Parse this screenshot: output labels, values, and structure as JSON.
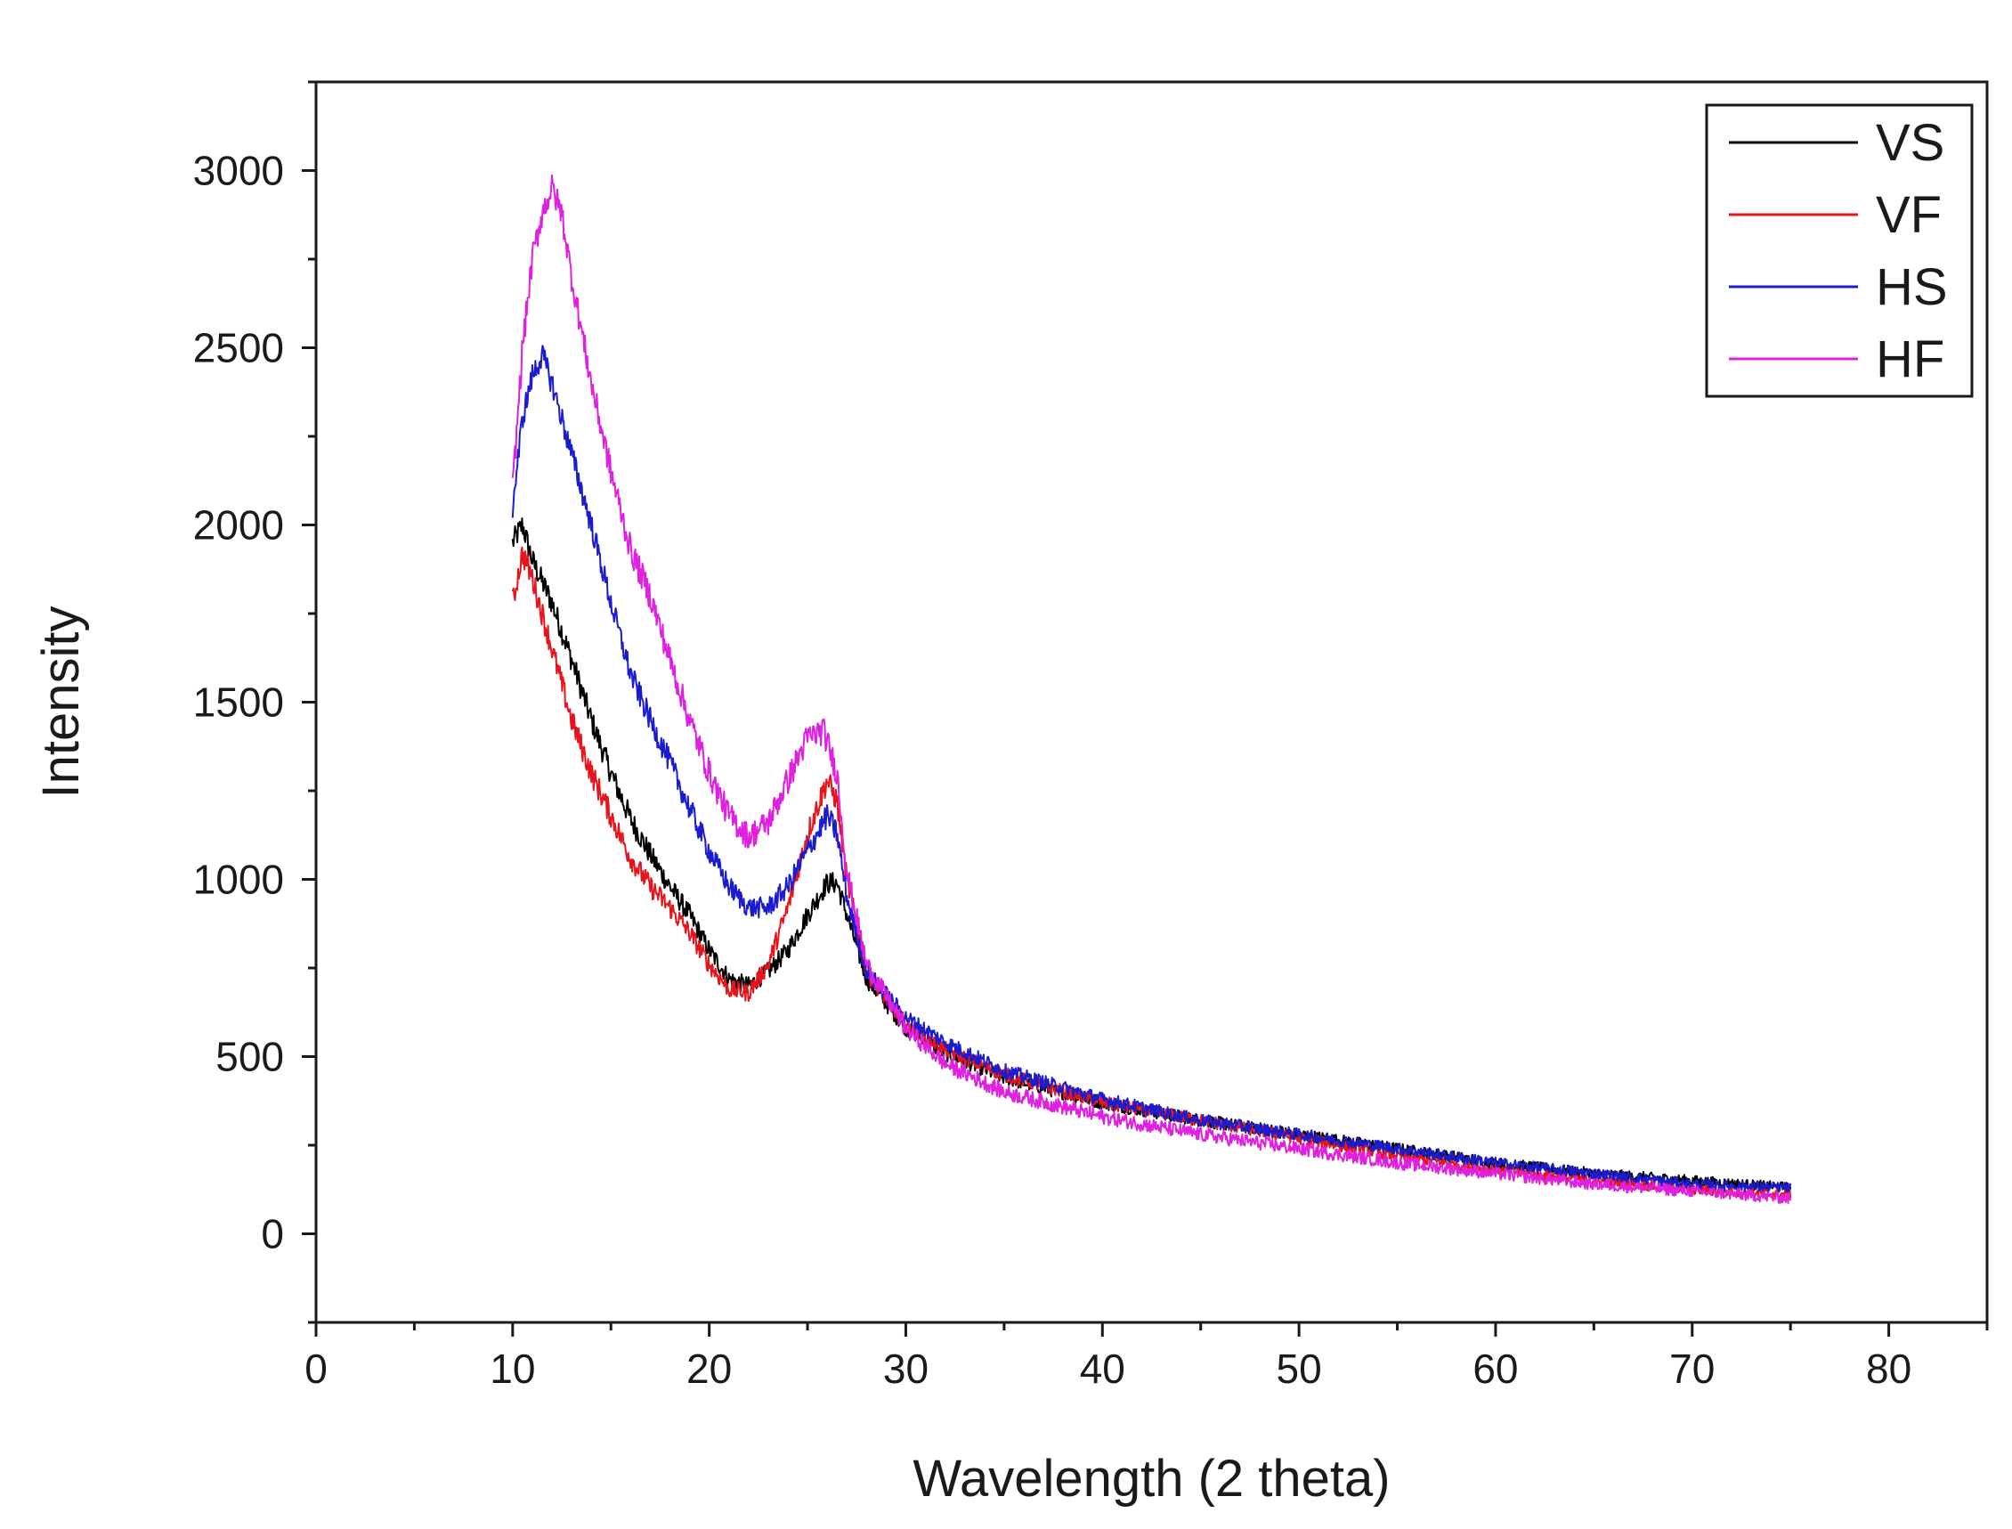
{
  "chart_data": {
    "type": "line",
    "title": "",
    "xlabel": "Wavelength (2 theta)",
    "ylabel": "Intensity",
    "xlim": [
      0,
      85
    ],
    "ylim": [
      -250,
      3250
    ],
    "xticks": [
      0,
      10,
      20,
      30,
      40,
      50,
      60,
      70,
      80
    ],
    "yticks": [
      0,
      500,
      1000,
      1500,
      2000,
      2500,
      3000
    ],
    "grid": false,
    "legend_position": "top-right",
    "series": [
      {
        "name": "VS",
        "color": "#000000",
        "noise": 35,
        "points": [
          [
            10,
            1950
          ],
          [
            10.5,
            2000
          ],
          [
            11,
            1900
          ],
          [
            12,
            1780
          ],
          [
            13,
            1620
          ],
          [
            14,
            1450
          ],
          [
            15,
            1300
          ],
          [
            16,
            1170
          ],
          [
            17,
            1070
          ],
          [
            18,
            980
          ],
          [
            19,
            900
          ],
          [
            20,
            800
          ],
          [
            21,
            720
          ],
          [
            22,
            700
          ],
          [
            23,
            740
          ],
          [
            24,
            800
          ],
          [
            25,
            900
          ],
          [
            26,
            990
          ],
          [
            26.5,
            990
          ],
          [
            27,
            900
          ],
          [
            28,
            720
          ],
          [
            30,
            580
          ],
          [
            32,
            510
          ],
          [
            35,
            440
          ],
          [
            40,
            370
          ],
          [
            45,
            320
          ],
          [
            50,
            280
          ],
          [
            55,
            240
          ],
          [
            60,
            200
          ],
          [
            65,
            170
          ],
          [
            70,
            150
          ],
          [
            75,
            130
          ]
        ]
      },
      {
        "name": "VF",
        "color": "#e8141b",
        "noise": 35,
        "points": [
          [
            10,
            1780
          ],
          [
            10.5,
            1920
          ],
          [
            11,
            1850
          ],
          [
            12,
            1650
          ],
          [
            13,
            1450
          ],
          [
            14,
            1300
          ],
          [
            15,
            1180
          ],
          [
            16,
            1060
          ],
          [
            17,
            980
          ],
          [
            18,
            920
          ],
          [
            19,
            850
          ],
          [
            20,
            760
          ],
          [
            21,
            690
          ],
          [
            22,
            680
          ],
          [
            23,
            760
          ],
          [
            24,
            920
          ],
          [
            25,
            1130
          ],
          [
            26,
            1280
          ],
          [
            26.5,
            1220
          ],
          [
            27,
            1000
          ],
          [
            28,
            740
          ],
          [
            30,
            590
          ],
          [
            32,
            520
          ],
          [
            35,
            450
          ],
          [
            40,
            370
          ],
          [
            45,
            320
          ],
          [
            50,
            270
          ],
          [
            55,
            220
          ],
          [
            60,
            180
          ],
          [
            65,
            150
          ],
          [
            70,
            125
          ],
          [
            75,
            110
          ]
        ]
      },
      {
        "name": "HS",
        "color": "#1b1bd0",
        "noise": 35,
        "points": [
          [
            10,
            2050
          ],
          [
            10.5,
            2300
          ],
          [
            11,
            2420
          ],
          [
            11.5,
            2480
          ],
          [
            12,
            2400
          ],
          [
            13,
            2200
          ],
          [
            14,
            2000
          ],
          [
            15,
            1780
          ],
          [
            16,
            1580
          ],
          [
            17,
            1450
          ],
          [
            18,
            1330
          ],
          [
            19,
            1200
          ],
          [
            20,
            1080
          ],
          [
            21,
            980
          ],
          [
            22,
            920
          ],
          [
            23,
            920
          ],
          [
            24,
            980
          ],
          [
            25,
            1080
          ],
          [
            26,
            1180
          ],
          [
            26.5,
            1130
          ],
          [
            27,
            950
          ],
          [
            28,
            740
          ],
          [
            30,
            610
          ],
          [
            32,
            540
          ],
          [
            35,
            460
          ],
          [
            40,
            380
          ],
          [
            45,
            320
          ],
          [
            50,
            280
          ],
          [
            55,
            240
          ],
          [
            60,
            200
          ],
          [
            65,
            170
          ],
          [
            70,
            140
          ],
          [
            75,
            130
          ]
        ]
      },
      {
        "name": "HF",
        "color": "#e020e0",
        "noise": 40,
        "points": [
          [
            10,
            2100
          ],
          [
            10.5,
            2500
          ],
          [
            11,
            2750
          ],
          [
            11.5,
            2880
          ],
          [
            12,
            2950
          ],
          [
            12.5,
            2880
          ],
          [
            13,
            2700
          ],
          [
            14,
            2400
          ],
          [
            15,
            2150
          ],
          [
            16,
            1930
          ],
          [
            17,
            1800
          ],
          [
            18,
            1620
          ],
          [
            19,
            1450
          ],
          [
            20,
            1300
          ],
          [
            21,
            1180
          ],
          [
            22,
            1120
          ],
          [
            23,
            1160
          ],
          [
            24,
            1280
          ],
          [
            25,
            1400
          ],
          [
            25.8,
            1420
          ],
          [
            26.5,
            1300
          ],
          [
            27,
            1020
          ],
          [
            28,
            760
          ],
          [
            30,
            580
          ],
          [
            32,
            480
          ],
          [
            35,
            400
          ],
          [
            40,
            330
          ],
          [
            45,
            280
          ],
          [
            50,
            240
          ],
          [
            55,
            200
          ],
          [
            60,
            170
          ],
          [
            65,
            140
          ],
          [
            70,
            120
          ],
          [
            75,
            100
          ]
        ]
      }
    ]
  }
}
